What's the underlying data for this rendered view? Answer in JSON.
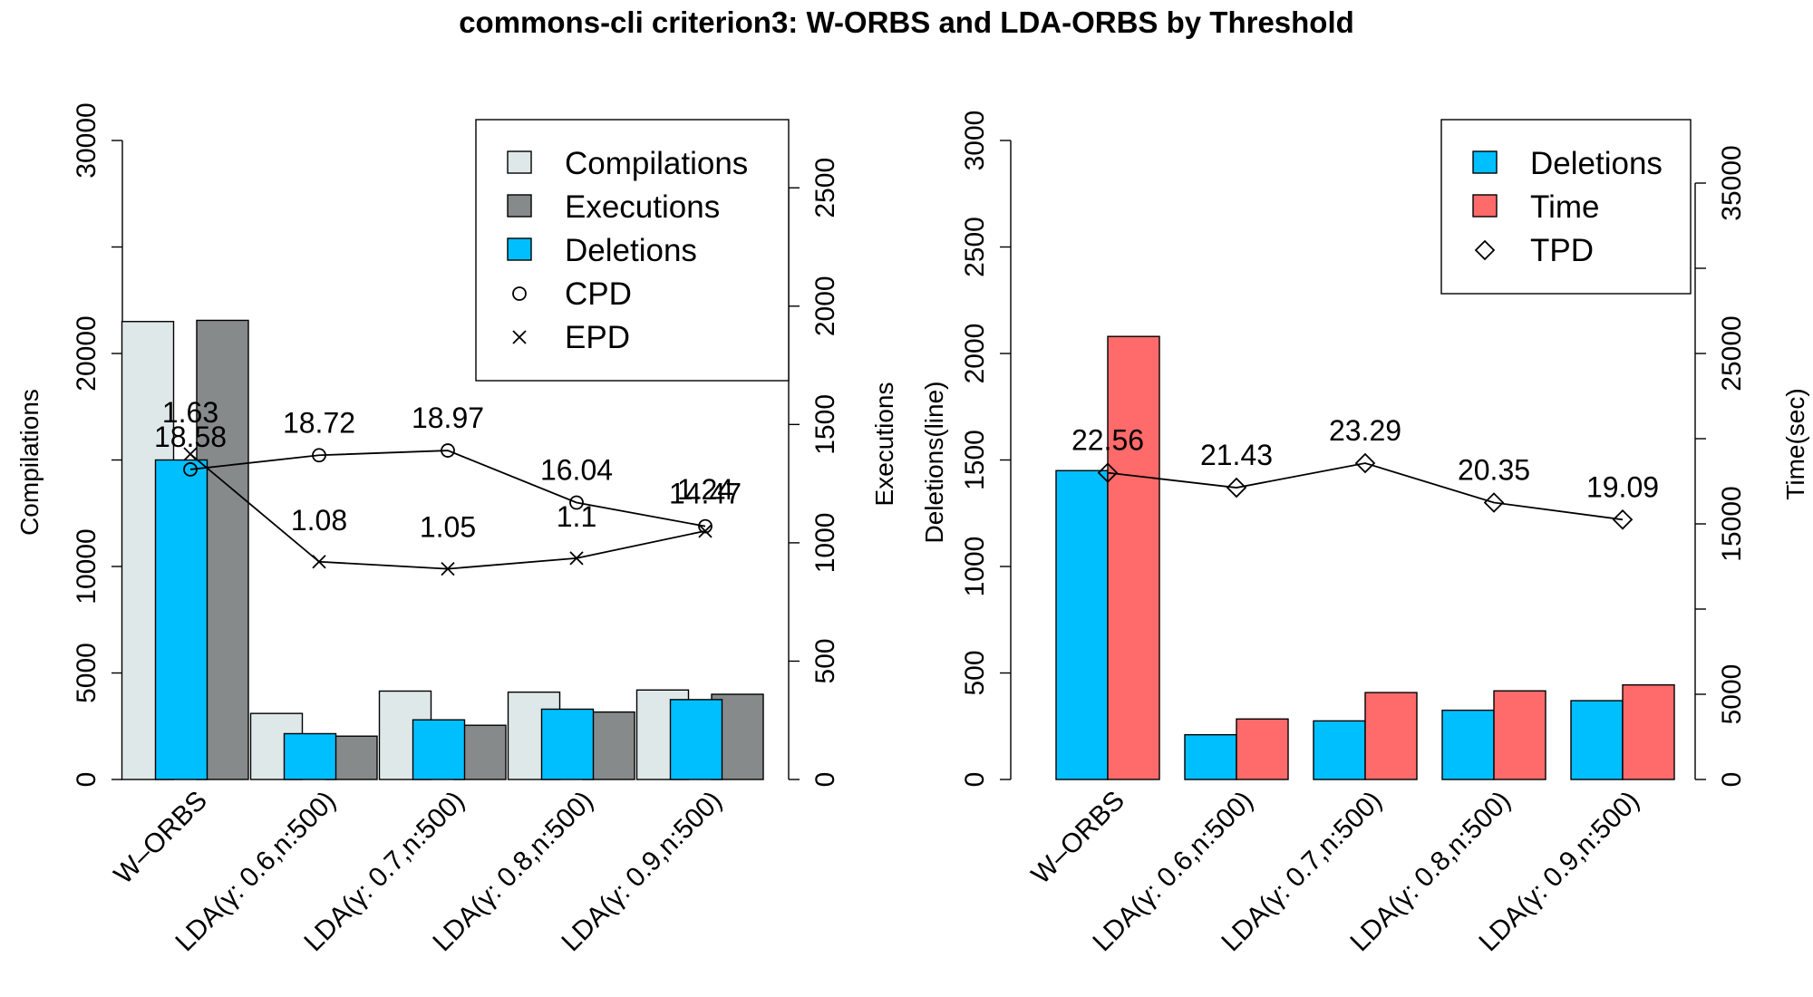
{
  "chart_data": {
    "title": "commons-cli criterion3: W-ORBS and LDA-ORBS by Threshold",
    "categories": [
      "W–ORBS",
      "LDA(γ: 0.6,n:500)",
      "LDA(γ: 0.7,n:500)",
      "LDA(γ: 0.8,n:500)",
      "LDA(γ: 0.9,n:500)"
    ],
    "colors": {
      "compilations": "#dfe8e8",
      "executions": "#878a8a",
      "deletions": "#00bfff",
      "time": "#ff6a6a"
    },
    "panels": [
      {
        "id": "left",
        "type": "bar",
        "ylabel": "Compilations",
        "ylim": [
          0,
          30000
        ],
        "yticks": [
          0,
          5000,
          10000,
          20000,
          30000
        ],
        "y2label": "Executions",
        "y2lim": [
          0,
          2700
        ],
        "y2ticks": [
          0,
          500,
          1000,
          1500,
          2000,
          2500
        ],
        "series": [
          {
            "name": "Compilations",
            "axis": "left",
            "values": [
              21500,
              3100,
              4150,
              4100,
              4200
            ]
          },
          {
            "name": "Deletions",
            "axis": "left",
            "values": [
              15000,
              2150,
              2800,
              3300,
              3750
            ]
          },
          {
            "name": "Executions",
            "axis": "right",
            "values": [
              1940,
              183,
              229,
              285,
              360
            ]
          }
        ],
        "lines": [
          {
            "name": "CPD",
            "marker": "circle",
            "values": [
              1310,
              1370,
              1390,
              1170,
              1070
            ],
            "labels": [
              "18.58",
              "18.72",
              "18.97",
              "16.04",
              "14.47"
            ]
          },
          {
            "name": "EPD",
            "marker": "x",
            "values": [
              1375,
              920,
              890,
              935,
              1050
            ],
            "labels": [
              "1.63",
              "1.08",
              "1.05",
              "1.1",
              "1.24"
            ]
          }
        ],
        "legend": [
          "Compilations",
          "Executions",
          "Deletions",
          "CPD",
          "EPD"
        ],
        "legend_position": "top-right"
      },
      {
        "id": "right",
        "type": "bar",
        "ylabel": "Deletions(line)",
        "ylim": [
          0,
          3000
        ],
        "yticks": [
          0,
          500,
          1000,
          1500,
          2000,
          2500,
          3000
        ],
        "y2label": "Time(sec)",
        "y2lim": [
          0,
          37500
        ],
        "y2ticks": [
          0,
          5000,
          15000,
          25000,
          35000
        ],
        "series": [
          {
            "name": "Deletions",
            "axis": "left",
            "values": [
              1450,
              210,
              275,
              325,
              370
            ]
          },
          {
            "name": "Time",
            "axis": "right",
            "values": [
              26000,
              3550,
              5100,
              5200,
              5550
            ]
          }
        ],
        "lines": [
          {
            "name": "TPD",
            "marker": "diamond",
            "values": [
              1440,
              1370,
              1485,
              1300,
              1220
            ],
            "labels": [
              "22.56",
              "21.43",
              "23.29",
              "20.35",
              "19.09"
            ]
          }
        ],
        "legend": [
          "Deletions",
          "Time",
          "TPD"
        ],
        "legend_position": "top-right"
      }
    ]
  }
}
